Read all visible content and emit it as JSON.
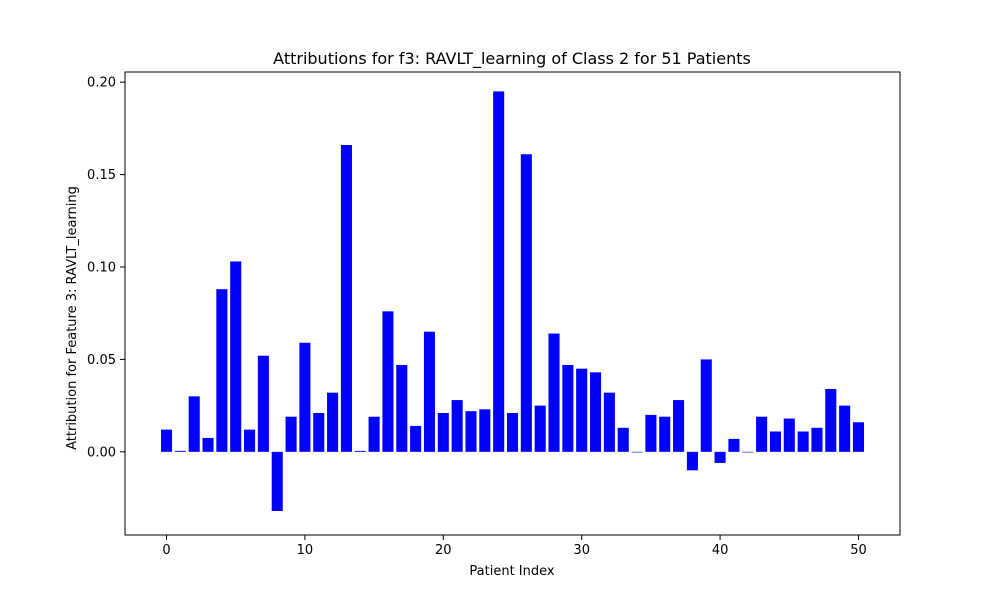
{
  "chart_data": {
    "type": "bar",
    "title": "Attributions for f3: RAVLT_learning of Class 2 for 51 Patients",
    "xlabel": "Patient Index",
    "ylabel": "Attribution for Feature 3: RAVLT_learning",
    "bar_color": "#0000ff",
    "grid": false,
    "legend": "none",
    "xlim": [
      -3,
      53
    ],
    "ylim": [
      -0.045,
      0.2055
    ],
    "xticks": [
      0,
      10,
      20,
      30,
      40,
      50
    ],
    "xtick_labels": [
      "0",
      "10",
      "20",
      "30",
      "40",
      "50"
    ],
    "yticks": [
      0.0,
      0.05,
      0.1,
      0.15,
      0.2
    ],
    "ytick_labels": [
      "0.00",
      "0.05",
      "0.10",
      "0.15",
      "0.20"
    ],
    "x": [
      0,
      1,
      2,
      3,
      4,
      5,
      6,
      7,
      8,
      9,
      10,
      11,
      12,
      13,
      14,
      15,
      16,
      17,
      18,
      19,
      20,
      21,
      22,
      23,
      24,
      25,
      26,
      27,
      28,
      29,
      30,
      31,
      32,
      33,
      34,
      35,
      36,
      37,
      38,
      39,
      40,
      41,
      42,
      43,
      44,
      45,
      46,
      47,
      48,
      49,
      50
    ],
    "values": [
      0.012,
      0.0005,
      0.03,
      0.0075,
      0.088,
      0.103,
      0.012,
      0.052,
      -0.032,
      0.019,
      0.059,
      0.021,
      0.032,
      0.166,
      0.0005,
      0.019,
      0.076,
      0.047,
      0.014,
      0.065,
      0.021,
      0.028,
      0.022,
      0.023,
      0.195,
      0.021,
      0.161,
      0.025,
      0.064,
      0.047,
      0.045,
      0.043,
      0.032,
      0.013,
      0.0,
      0.02,
      0.019,
      0.028,
      -0.01,
      0.05,
      -0.006,
      0.007,
      0.0,
      0.019,
      0.011,
      0.018,
      0.011,
      0.013,
      0.034,
      0.025,
      0.016
    ]
  }
}
